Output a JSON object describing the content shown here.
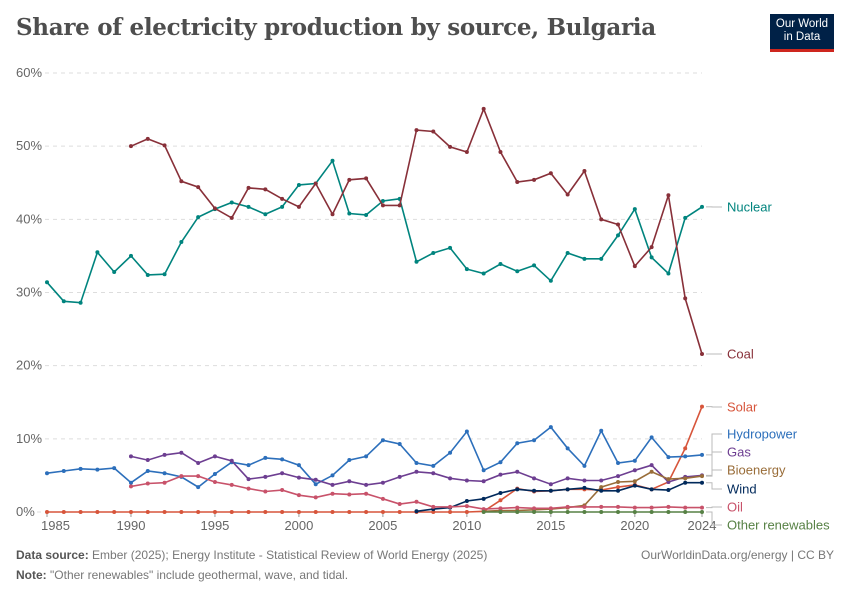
{
  "title": "Share of electricity production by source, Bulgaria",
  "logo": {
    "line1": "Our World",
    "line2": "in Data"
  },
  "footer": {
    "source_label": "Data source:",
    "source_text": "Ember (2025); Energy Institute - Statistical Review of World Energy (2025)",
    "right_text": "OurWorldinData.org/energy | CC BY",
    "note_label": "Note:",
    "note_text": "\"Other renewables\" include geothermal, wave, and tidal."
  },
  "chart_data": {
    "type": "line",
    "title": "Share of electricity production by source, Bulgaria",
    "ylim": [
      0,
      60
    ],
    "y_ticks": [
      0,
      10,
      20,
      30,
      40,
      50,
      60
    ],
    "y_tick_labels": [
      "0%",
      "10%",
      "20%",
      "30%",
      "40%",
      "50%",
      "60%"
    ],
    "x_ticks": [
      1985,
      1990,
      1995,
      2000,
      2005,
      2010,
      2015,
      2020,
      2024
    ],
    "x_tick_labels": [
      "1985",
      "1990",
      "1995",
      "2000",
      "2005",
      "2010",
      "2015",
      "2020",
      "2024"
    ],
    "grid": "horizontal dashed",
    "legend": "right, labels at line ends",
    "years": [
      1985,
      1986,
      1987,
      1988,
      1989,
      1990,
      1991,
      1992,
      1993,
      1994,
      1995,
      1996,
      1997,
      1998,
      1999,
      2000,
      2001,
      2002,
      2003,
      2004,
      2005,
      2006,
      2007,
      2008,
      2009,
      2010,
      2011,
      2012,
      2013,
      2014,
      2015,
      2016,
      2017,
      2018,
      2019,
      2020,
      2021,
      2022,
      2023,
      2024
    ],
    "series": [
      {
        "name": "Nuclear",
        "color": "#00847e",
        "values": [
          31.4,
          28.8,
          28.6,
          35.5,
          32.8,
          35.0,
          32.4,
          32.5,
          36.9,
          40.3,
          41.4,
          42.3,
          41.7,
          40.7,
          41.7,
          44.7,
          44.9,
          48.0,
          40.8,
          40.6,
          42.5,
          42.8,
          34.2,
          35.4,
          36.1,
          33.2,
          32.6,
          33.9,
          32.9,
          33.7,
          31.6,
          35.4,
          34.6,
          34.6,
          37.8,
          41.4,
          34.8,
          32.6,
          40.2,
          41.7
        ]
      },
      {
        "name": "Coal",
        "color": "#883039",
        "values": [
          null,
          null,
          null,
          null,
          null,
          50.0,
          51.0,
          50.1,
          45.2,
          44.4,
          41.5,
          40.2,
          44.3,
          44.1,
          42.8,
          41.7,
          44.9,
          40.7,
          45.4,
          45.6,
          41.9,
          41.9,
          52.2,
          52.0,
          49.9,
          49.2,
          55.1,
          49.2,
          45.1,
          45.4,
          46.3,
          43.4,
          46.6,
          40.0,
          39.3,
          33.6,
          36.2,
          43.3,
          29.2,
          21.6
        ]
      },
      {
        "name": "Solar",
        "color": "#d7553b",
        "values": [
          0,
          0,
          0,
          0,
          0,
          0,
          0,
          0,
          0,
          0,
          0,
          0,
          0,
          0,
          0,
          0,
          0,
          0,
          0,
          0,
          0,
          0,
          0,
          0,
          0,
          0,
          0.1,
          1.6,
          3.2,
          2.8,
          2.9,
          3.1,
          3.1,
          3.0,
          3.4,
          3.7,
          3.1,
          4.1,
          8.7,
          14.4
        ]
      },
      {
        "name": "Hydropower",
        "color": "#2c6fbb",
        "values": [
          5.3,
          5.6,
          5.9,
          5.8,
          6.0,
          4.0,
          5.6,
          5.3,
          4.8,
          3.4,
          5.2,
          6.8,
          6.4,
          7.4,
          7.2,
          6.4,
          3.8,
          5.0,
          7.1,
          7.6,
          9.8,
          9.3,
          6.7,
          6.3,
          8.1,
          11.0,
          5.7,
          6.8,
          9.4,
          9.8,
          11.6,
          8.7,
          6.3,
          11.1,
          6.7,
          7.0,
          10.2,
          7.5,
          7.6,
          7.8
        ]
      },
      {
        "name": "Gas",
        "color": "#6d3e91",
        "values": [
          null,
          null,
          null,
          null,
          null,
          7.6,
          7.1,
          7.8,
          8.1,
          6.7,
          7.6,
          7.0,
          4.5,
          4.8,
          5.3,
          4.7,
          4.4,
          3.7,
          4.2,
          3.7,
          4.0,
          4.8,
          5.5,
          5.3,
          4.6,
          4.3,
          4.2,
          5.1,
          5.5,
          4.6,
          3.8,
          4.6,
          4.3,
          4.3,
          4.9,
          5.7,
          6.4,
          4.1,
          4.8,
          5.0
        ]
      },
      {
        "name": "Bioenergy",
        "color": "#996d39",
        "values": [
          null,
          null,
          null,
          null,
          null,
          null,
          null,
          null,
          null,
          null,
          null,
          null,
          null,
          null,
          null,
          null,
          null,
          null,
          null,
          null,
          null,
          null,
          null,
          null,
          null,
          null,
          0.1,
          0.2,
          0.2,
          0.3,
          0.4,
          0.6,
          0.9,
          3.4,
          4.1,
          4.2,
          5.5,
          4.5,
          4.6,
          4.9
        ]
      },
      {
        "name": "Wind",
        "color": "#00295b",
        "values": [
          null,
          null,
          null,
          null,
          null,
          null,
          null,
          null,
          null,
          null,
          null,
          null,
          null,
          null,
          null,
          null,
          null,
          null,
          null,
          null,
          null,
          null,
          0.1,
          0.4,
          0.6,
          1.5,
          1.8,
          2.6,
          3.1,
          2.9,
          2.9,
          3.1,
          3.3,
          2.9,
          2.9,
          3.6,
          3.1,
          3.0,
          4.0,
          4.0
        ]
      },
      {
        "name": "Oil",
        "color": "#c8526a",
        "values": [
          null,
          null,
          null,
          null,
          null,
          3.5,
          3.9,
          4.0,
          4.9,
          4.9,
          4.1,
          3.7,
          3.2,
          2.8,
          3.0,
          2.3,
          2.0,
          2.5,
          2.4,
          2.5,
          1.8,
          1.1,
          1.4,
          0.7,
          0.7,
          0.8,
          0.4,
          0.5,
          0.6,
          0.5,
          0.5,
          0.7,
          0.7,
          0.7,
          0.7,
          0.6,
          0.6,
          0.7,
          0.6,
          0.6
        ]
      },
      {
        "name": "Other renewables",
        "color": "#578145",
        "values": [
          null,
          null,
          null,
          null,
          null,
          null,
          null,
          null,
          null,
          null,
          null,
          null,
          null,
          null,
          null,
          null,
          null,
          null,
          null,
          null,
          null,
          null,
          null,
          null,
          null,
          null,
          0,
          0,
          0,
          0,
          0,
          0,
          0,
          0,
          0,
          0,
          0,
          0,
          0,
          0
        ]
      }
    ]
  }
}
